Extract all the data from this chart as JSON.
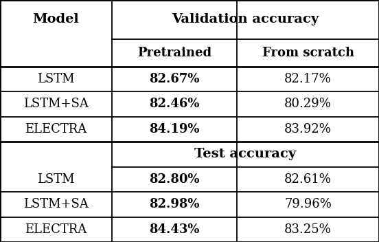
{
  "col_bounds": [
    0.0,
    0.295,
    0.625,
    1.0
  ],
  "row_heights_raw": [
    1.55,
    1.1,
    1.0,
    1.0,
    1.0,
    1.0,
    1.0,
    1.0,
    1.0
  ],
  "bg_color": "#ffffff",
  "line_color": "#000000",
  "text_color": "#000000",
  "fs_header": 14,
  "fs_subheader": 13,
  "fs_cell": 13,
  "rows": [
    {
      "model": "LSTM",
      "pretrained": "82.67%",
      "from_scratch": "82.17%"
    },
    {
      "model": "LSTM+SA",
      "pretrained": "82.46%",
      "from_scratch": "80.29%"
    },
    {
      "model": "ELECTRA",
      "pretrained": "84.19%",
      "from_scratch": "83.92%"
    },
    {
      "model": "LSTM",
      "pretrained": "82.80%",
      "from_scratch": "82.61%"
    },
    {
      "model": "LSTM+SA",
      "pretrained": "82.98%",
      "from_scratch": "79.96%"
    },
    {
      "model": "ELECTRA",
      "pretrained": "84.43%",
      "from_scratch": "83.25%"
    }
  ]
}
